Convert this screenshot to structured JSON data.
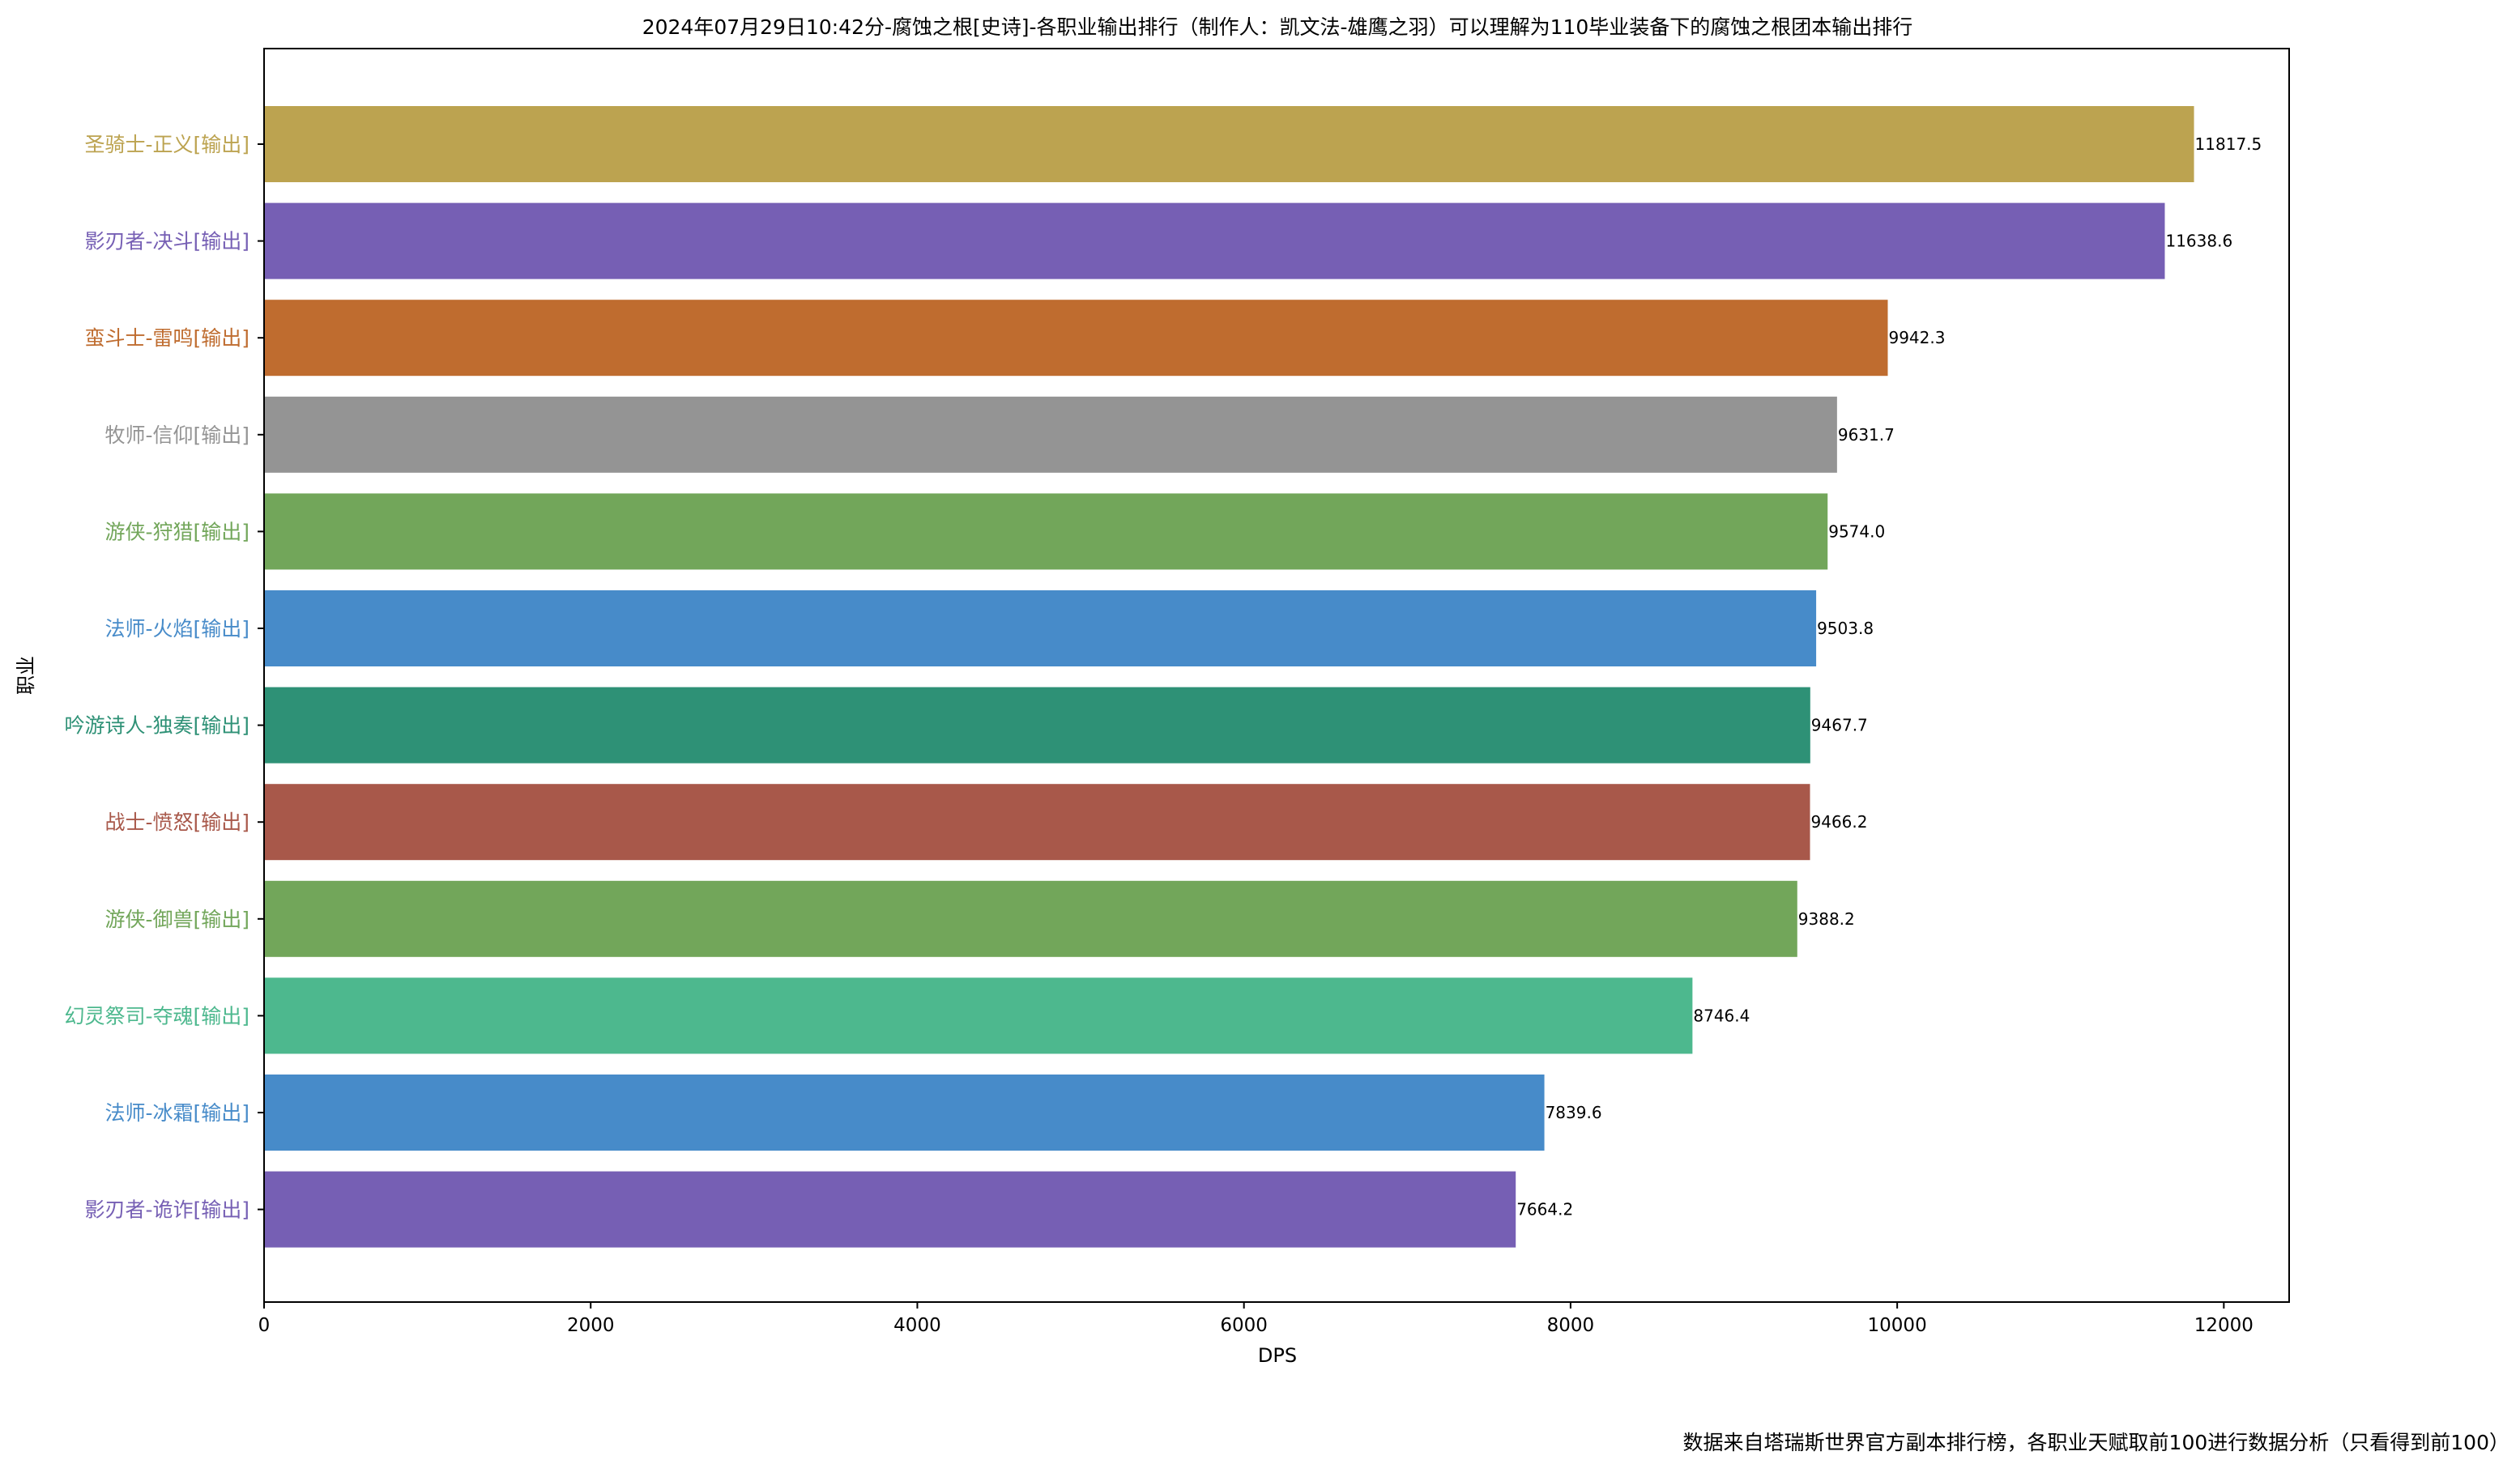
{
  "chart_data": {
    "type": "bar",
    "orientation": "horizontal",
    "title": "2024年07月29日10:42分-腐蚀之根[史诗]-各职业输出排行（制作人：凯文法-雄鹰之羽）可以理解为110毕业装备下的腐蚀之根团本输出排行",
    "xlabel": "DPS",
    "ylabel": "职业",
    "xlim": [
      0,
      12400
    ],
    "x_ticks": [
      "0",
      "2000",
      "4000",
      "6000",
      "8000",
      "10000",
      "12000"
    ],
    "grid": false,
    "legend": "none",
    "footnote": "数据来自塔瑞斯世界官方副本排行榜，各职业天赋取前100进行数据分析（只看得到前100）",
    "categories": [
      "圣骑士-正义[输出]",
      "影刃者-决斗[输出]",
      "蛮斗士-雷鸣[输出]",
      "牧师-信仰[输出]",
      "游侠-狩猎[输出]",
      "法师-火焰[输出]",
      "吟游诗人-独奏[输出]",
      "战士-愤怒[输出]",
      "游侠-御兽[输出]",
      "幻灵祭司-夺魂[输出]",
      "法师-冰霜[输出]",
      "影刃者-诡诈[输出]"
    ],
    "values": [
      11817.5,
      11638.6,
      9942.3,
      9631.7,
      9574.0,
      9503.8,
      9467.7,
      9466.2,
      9388.2,
      8746.4,
      7839.6,
      7664.2
    ],
    "value_labels": [
      "11817.5",
      "11638.6",
      "9942.3",
      "9631.7",
      "9574.0",
      "9503.8",
      "9467.7",
      "9466.2",
      "9388.2",
      "8746.4",
      "7839.6",
      "7664.2"
    ],
    "colors": [
      "#bca350",
      "#765fb4",
      "#bf6c2f",
      "#949494",
      "#72a65a",
      "#478bc9",
      "#2e9176",
      "#a8584a",
      "#72a65a",
      "#4db88e",
      "#478bc9",
      "#765fb4"
    ]
  }
}
